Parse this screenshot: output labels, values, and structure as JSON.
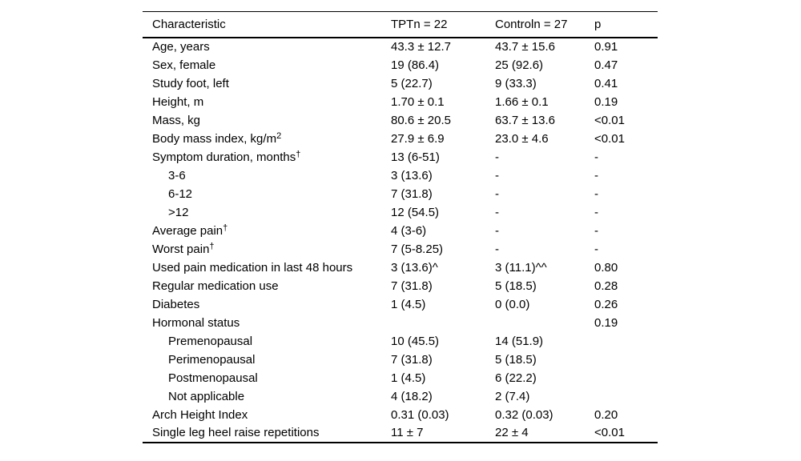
{
  "table": {
    "columns": [
      "Characteristic",
      "TPTn = 22",
      "Controln = 27",
      "p"
    ],
    "rows": [
      {
        "label": "Age, years",
        "sup": "",
        "indent": false,
        "tpt": "43.3 ± 12.7",
        "control": "43.7 ± 15.6",
        "p": "0.91"
      },
      {
        "label": "Sex, female",
        "sup": "",
        "indent": false,
        "tpt": "19 (86.4)",
        "control": "25 (92.6)",
        "p": "0.47"
      },
      {
        "label": "Study foot, left",
        "sup": "",
        "indent": false,
        "tpt": "5 (22.7)",
        "control": "9 (33.3)",
        "p": "0.41"
      },
      {
        "label": "Height, m",
        "sup": "",
        "indent": false,
        "tpt": "1.70 ± 0.1",
        "control": "1.66 ± 0.1",
        "p": "0.19"
      },
      {
        "label": "Mass, kg",
        "sup": "",
        "indent": false,
        "tpt": "80.6 ± 20.5",
        "control": "63.7 ± 13.6",
        "p": "<0.01"
      },
      {
        "label": "Body mass index, kg/m",
        "sup": "2",
        "indent": false,
        "tpt": "27.9 ± 6.9",
        "control": "23.0 ± 4.6",
        "p": "<0.01"
      },
      {
        "label": "Symptom duration, months",
        "sup": "†",
        "indent": false,
        "tpt": "13 (6-51)",
        "control": "-",
        "p": "-"
      },
      {
        "label": "3-6",
        "sup": "",
        "indent": true,
        "tpt": "3 (13.6)",
        "control": "-",
        "p": "-"
      },
      {
        "label": "6-12",
        "sup": "",
        "indent": true,
        "tpt": "7 (31.8)",
        "control": "-",
        "p": "-"
      },
      {
        "label": ">12",
        "sup": "",
        "indent": true,
        "tpt": "12 (54.5)",
        "control": "-",
        "p": "-"
      },
      {
        "label": "Average pain",
        "sup": "†",
        "indent": false,
        "tpt": "4 (3-6)",
        "control": "-",
        "p": "-"
      },
      {
        "label": "Worst pain",
        "sup": "†",
        "indent": false,
        "tpt": "7 (5-8.25)",
        "control": "-",
        "p": "-"
      },
      {
        "label": "Used pain medication in last 48 hours",
        "sup": "",
        "indent": false,
        "tpt": "3 (13.6)^",
        "control": "3 (11.1)^^",
        "p": "0.80"
      },
      {
        "label": "Regular medication use",
        "sup": "",
        "indent": false,
        "tpt": "7 (31.8)",
        "control": "5 (18.5)",
        "p": "0.28"
      },
      {
        "label": "Diabetes",
        "sup": "",
        "indent": false,
        "tpt": "1 (4.5)",
        "control": "0 (0.0)",
        "p": "0.26"
      },
      {
        "label": "Hormonal status",
        "sup": "",
        "indent": false,
        "tpt": "",
        "control": "",
        "p": "0.19"
      },
      {
        "label": "Premenopausal",
        "sup": "",
        "indent": true,
        "tpt": "10 (45.5)",
        "control": "14 (51.9)",
        "p": ""
      },
      {
        "label": "Perimenopausal",
        "sup": "",
        "indent": true,
        "tpt": "7 (31.8)",
        "control": "5 (18.5)",
        "p": ""
      },
      {
        "label": "Postmenopausal",
        "sup": "",
        "indent": true,
        "tpt": "1 (4.5)",
        "control": "6 (22.2)",
        "p": ""
      },
      {
        "label": "Not applicable",
        "sup": "",
        "indent": true,
        "tpt": "4 (18.2)",
        "control": "2 (7.4)",
        "p": ""
      },
      {
        "label": "Arch Height Index",
        "sup": "",
        "indent": false,
        "tpt": "0.31 (0.03)",
        "control": "0.32 (0.03)",
        "p": "0.20"
      },
      {
        "label": "Single leg heel raise repetitions",
        "sup": "",
        "indent": false,
        "tpt": "11 ± 7",
        "control": "22 ± 4",
        "p": "<0.01"
      }
    ]
  }
}
